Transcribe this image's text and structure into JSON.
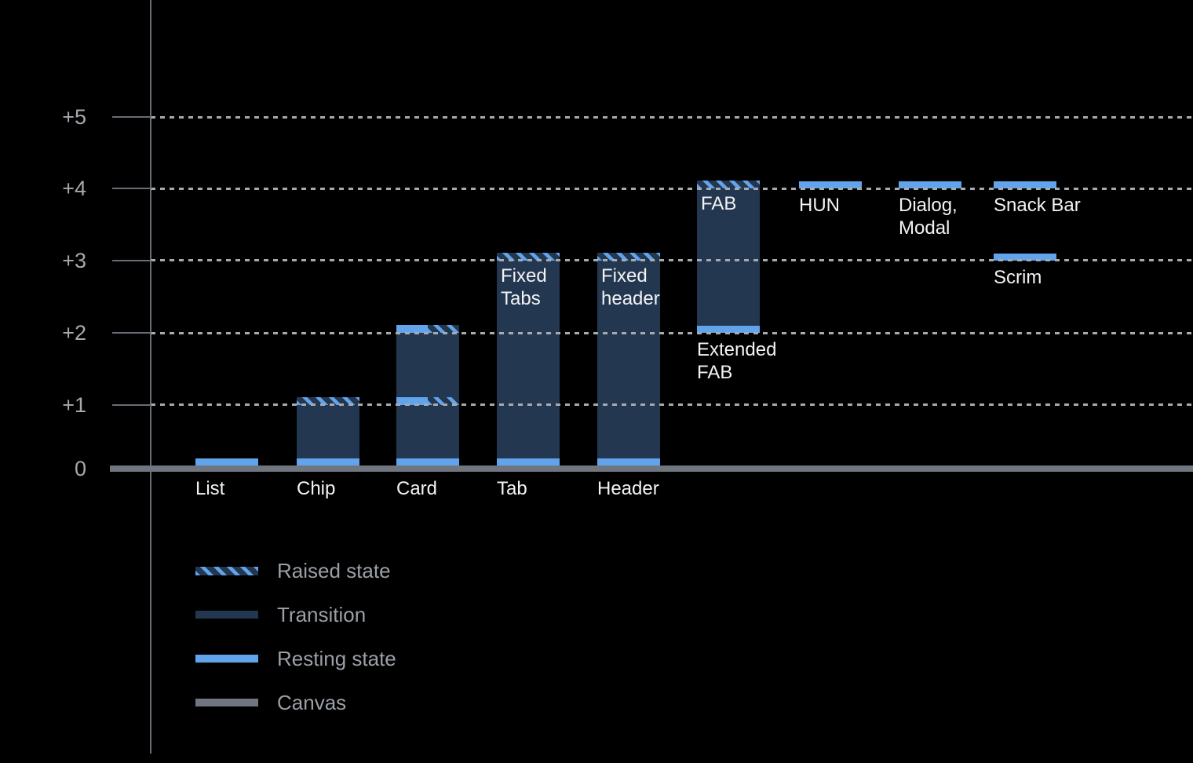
{
  "chart_data": {
    "type": "bar",
    "title": "",
    "description": "Elevation diagram of UI components: stacked ranges (resting state, transition, raised state) above a canvas baseline, in elevation levels 0 to +5",
    "y_axis": {
      "ticks": [
        {
          "label": "+5",
          "level": 5
        },
        {
          "label": "+4",
          "level": 4
        },
        {
          "label": "+3",
          "level": 3
        },
        {
          "label": "+2",
          "level": 2
        },
        {
          "label": "+1",
          "level": 1
        },
        {
          "label": "0",
          "level": 0
        }
      ],
      "ylim": [
        0,
        5.5
      ],
      "grid": "dotted horizontal line at each level above 0"
    },
    "legend": [
      {
        "id": "raised",
        "label": "Raised state"
      },
      {
        "id": "transition",
        "label": "Transition"
      },
      {
        "id": "resting",
        "label": "Resting state"
      },
      {
        "id": "canvas",
        "label": "Canvas"
      }
    ],
    "bars": [
      {
        "id": "list",
        "column": 0,
        "axis_label": "List",
        "segments": [
          {
            "kind": "resting",
            "at": 0
          }
        ]
      },
      {
        "id": "chip",
        "column": 1,
        "axis_label": "Chip",
        "segments": [
          {
            "kind": "resting",
            "at": 0
          },
          {
            "kind": "transition",
            "from": 0,
            "to": 1
          },
          {
            "kind": "raised",
            "at": 1
          }
        ]
      },
      {
        "id": "card",
        "column": 2,
        "axis_label": "Card",
        "segments": [
          {
            "kind": "resting",
            "at": 0
          },
          {
            "kind": "transition",
            "from": 0,
            "to": 2
          },
          {
            "kind": "resting_raised",
            "at": 1
          },
          {
            "kind": "resting_raised",
            "at": 2
          }
        ]
      },
      {
        "id": "tab",
        "column": 3,
        "axis_label": "Tab",
        "inner_label": "Fixed\nTabs",
        "segments": [
          {
            "kind": "resting",
            "at": 0
          },
          {
            "kind": "transition",
            "from": 0,
            "to": 3
          },
          {
            "kind": "raised",
            "at": 3
          }
        ]
      },
      {
        "id": "header",
        "column": 4,
        "axis_label": "Header",
        "inner_label": "Fixed\nheader",
        "segments": [
          {
            "kind": "resting",
            "at": 0
          },
          {
            "kind": "transition",
            "from": 0,
            "to": 3
          },
          {
            "kind": "raised",
            "at": 3
          }
        ]
      },
      {
        "id": "extended-fab",
        "column": 5,
        "inner_label": "FAB",
        "below_label": "Extended\nFAB",
        "below_label_level": 2,
        "segments": [
          {
            "kind": "resting",
            "at": 2
          },
          {
            "kind": "transition",
            "from": 2,
            "to": 4
          },
          {
            "kind": "raised",
            "at": 4
          }
        ]
      },
      {
        "id": "hun",
        "column": 6,
        "below_label": "HUN",
        "below_label_level": 4,
        "segments": [
          {
            "kind": "resting",
            "at": 4
          }
        ]
      },
      {
        "id": "dialog-modal",
        "column": 7,
        "below_label": "Dialog,\nModal",
        "below_label_level": 4,
        "segments": [
          {
            "kind": "resting",
            "at": 4
          }
        ]
      },
      {
        "id": "snack-bar",
        "column": 8,
        "below_label": "Snack Bar",
        "below_label_level": 4,
        "segments": [
          {
            "kind": "resting",
            "at": 4
          }
        ]
      },
      {
        "id": "scrim",
        "column": 8,
        "below_label": "Scrim",
        "below_label_level": 3,
        "segments": [
          {
            "kind": "resting",
            "at": 3
          }
        ]
      }
    ],
    "colors": {
      "background": "#000000",
      "resting_state": "#62A4EC",
      "transition": "#243750",
      "canvas": "#6F7680",
      "grid_dots": "#A6ABB0",
      "axis_line": "#666D75",
      "bar_label_text": "#F1F3F4",
      "axis_tick_text": "#A6A9AD",
      "legend_text": "#9AA0A6"
    }
  }
}
